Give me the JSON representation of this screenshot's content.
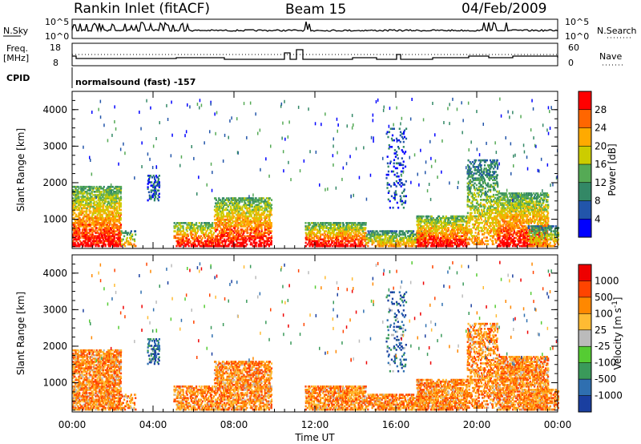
{
  "header": {
    "station": "Rankin Inlet (fitACF)",
    "beam": "Beam 15",
    "date": "04/Feb/2009"
  },
  "top_panels": {
    "left_label_1": "N.Sky",
    "left_ticks_1": [
      "10^5",
      "10^0"
    ],
    "right_label_1": "N.Search",
    "right_ticks_1": [
      "10^5",
      "10^0"
    ],
    "left_label_2_line1": "Freq.",
    "left_label_2_line2": "[MHz]",
    "left_ticks_2": [
      "18",
      "8"
    ],
    "right_label_2": "Nave",
    "right_ticks_2": [
      "60",
      "0"
    ],
    "cpid_label": "CPID",
    "cpid_text": "normalsound (fast) -157"
  },
  "chart_data": [
    {
      "type": "heatmap",
      "title": "",
      "ylabel": "Slant Range [km]",
      "yticks": [
        "1000",
        "2000",
        "3000",
        "4000"
      ],
      "ylim": [
        200,
        4500
      ],
      "xlim": [
        "00:00",
        "24:00"
      ],
      "colorbar_label": "Power [dB]",
      "colorbar_ticks": [
        "4",
        "8",
        "12",
        "16",
        "20",
        "24",
        "28"
      ],
      "colorbar_colors": [
        "#0000ff",
        "#2255aa",
        "#338866",
        "#55aa55",
        "#cccc00",
        "#ffaa00",
        "#ff6600",
        "#ff0000"
      ],
      "grid": false
    },
    {
      "type": "heatmap",
      "title": "",
      "ylabel": "Slant Range [km]",
      "yticks": [
        "1000",
        "2000",
        "3000",
        "4000"
      ],
      "ylim": [
        200,
        4500
      ],
      "xlim": [
        "00:00",
        "24:00"
      ],
      "colorbar_label": "Velocity [m s^-1]",
      "colorbar_ticks": [
        "1000",
        "500",
        "100",
        "25",
        "-25",
        "-100",
        "-500",
        "-1000"
      ],
      "colorbar_colors": [
        "#1a3fa0",
        "#2f6fb0",
        "#3a9a5a",
        "#55cc33",
        "#bbbbbb",
        "#ffbb33",
        "#ff8800",
        "#ff4400",
        "#ee0000"
      ],
      "grid": false
    }
  ],
  "x_axis": {
    "label": "Time UT",
    "ticks": [
      "00:00",
      "04:00",
      "08:00",
      "12:00",
      "16:00",
      "20:00",
      "00:00"
    ]
  }
}
